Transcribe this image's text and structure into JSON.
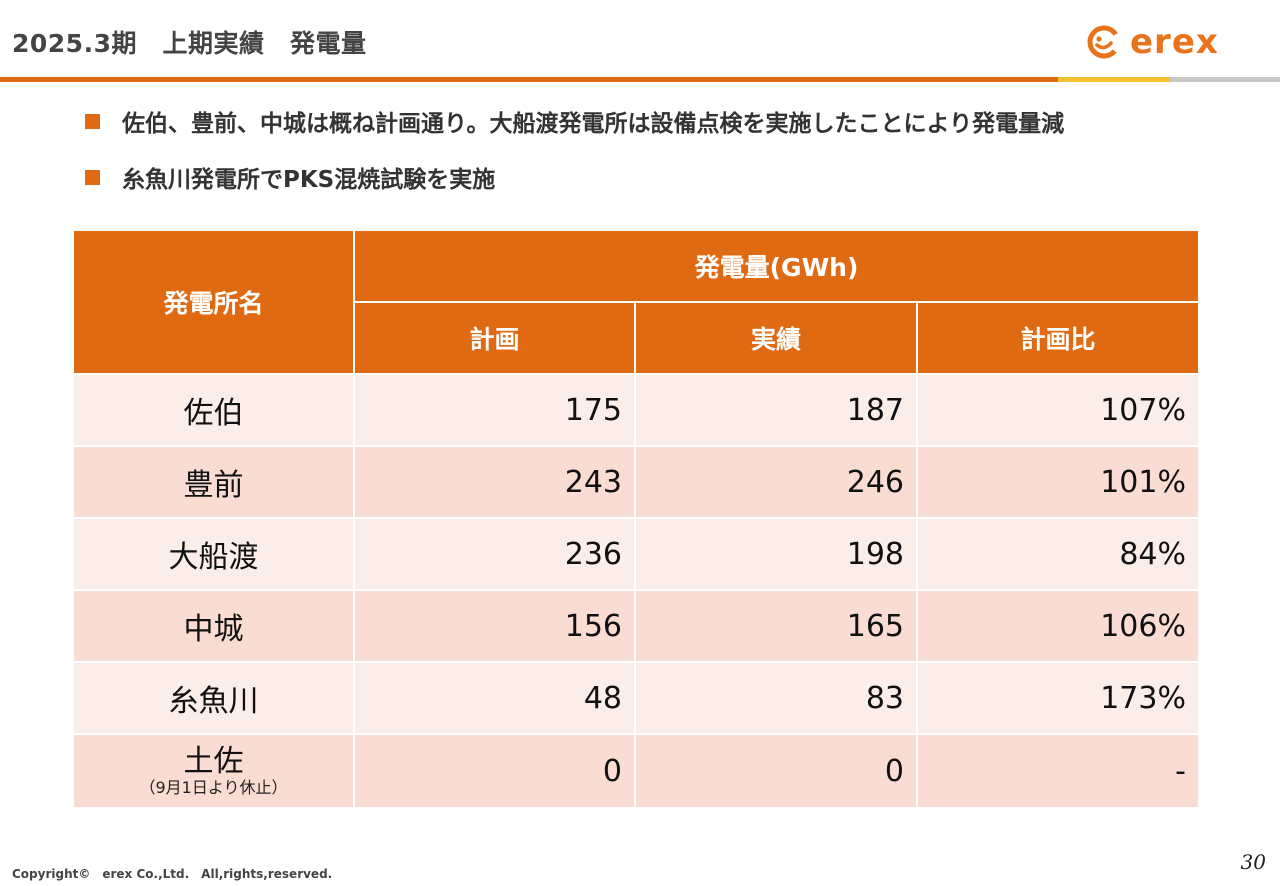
{
  "header": {
    "title": "2025.3期　上期実績　発電量",
    "logo_text": "erex",
    "brand_color": "#E06A12"
  },
  "bullets": [
    "佐伯、豊前、中城は概ね計画通り。大船渡発電所は設備点検を実施したことにより発電量減",
    "糸魚川発電所でPKS混焼試験を実施"
  ],
  "table": {
    "col_station": "発電所名",
    "group_header": "発電量(GWh)",
    "col_plan": "計画",
    "col_actual": "実績",
    "col_ratio": "計画比",
    "rows": [
      {
        "name": "佐伯",
        "note": "",
        "plan": "175",
        "actual": "187",
        "ratio": "107%"
      },
      {
        "name": "豊前",
        "note": "",
        "plan": "243",
        "actual": "246",
        "ratio": "101%"
      },
      {
        "name": "大船渡",
        "note": "",
        "plan": "236",
        "actual": "198",
        "ratio": "84%"
      },
      {
        "name": "中城",
        "note": "",
        "plan": "156",
        "actual": "165",
        "ratio": "106%"
      },
      {
        "name": "糸魚川",
        "note": "",
        "plan": "48",
        "actual": "83",
        "ratio": "173%"
      },
      {
        "name": "土佐",
        "note": "（9月1日より休止）",
        "plan": "0",
        "actual": "0",
        "ratio": "-"
      }
    ]
  },
  "footer": {
    "copyright": "Copyright©　erex Co.,Ltd.　All,rights,reserved.",
    "page_number": "30"
  }
}
